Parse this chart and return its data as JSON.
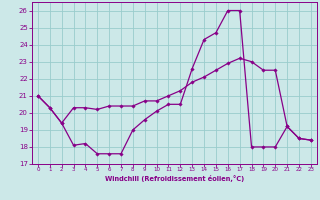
{
  "xlabel": "Windchill (Refroidissement éolien,°C)",
  "bg_color": "#cce8e8",
  "line_color": "#880088",
  "grid_color": "#99cccc",
  "xlim": [
    -0.5,
    23.5
  ],
  "ylim": [
    17,
    26.5
  ],
  "yticks": [
    17,
    18,
    19,
    20,
    21,
    22,
    23,
    24,
    25,
    26
  ],
  "xticks": [
    0,
    1,
    2,
    3,
    4,
    5,
    6,
    7,
    8,
    9,
    10,
    11,
    12,
    13,
    14,
    15,
    16,
    17,
    18,
    19,
    20,
    21,
    22,
    23
  ],
  "series1_x": [
    0,
    1,
    2,
    3,
    4,
    5,
    6,
    7,
    8,
    9,
    10,
    11,
    12,
    13,
    14,
    15,
    16,
    17,
    18,
    19,
    20,
    21,
    22,
    23
  ],
  "series1_y": [
    21.0,
    20.3,
    19.4,
    18.1,
    18.2,
    17.6,
    17.6,
    17.6,
    19.0,
    19.6,
    20.1,
    20.5,
    20.5,
    22.6,
    24.3,
    24.7,
    26.0,
    26.0,
    18.0,
    18.0,
    18.0,
    19.2,
    18.5,
    18.4
  ],
  "series2_x": [
    0,
    1,
    2,
    3,
    4,
    5,
    6,
    7,
    8,
    9,
    10,
    11,
    12,
    13,
    14,
    15,
    16,
    17,
    18,
    19,
    20,
    21,
    22,
    23
  ],
  "series2_y": [
    21.0,
    20.3,
    19.4,
    20.3,
    20.3,
    20.2,
    20.4,
    20.4,
    20.4,
    20.7,
    20.7,
    21.0,
    21.3,
    21.8,
    22.1,
    22.5,
    22.9,
    23.2,
    23.0,
    22.5,
    22.5,
    19.2,
    18.5,
    18.4
  ]
}
